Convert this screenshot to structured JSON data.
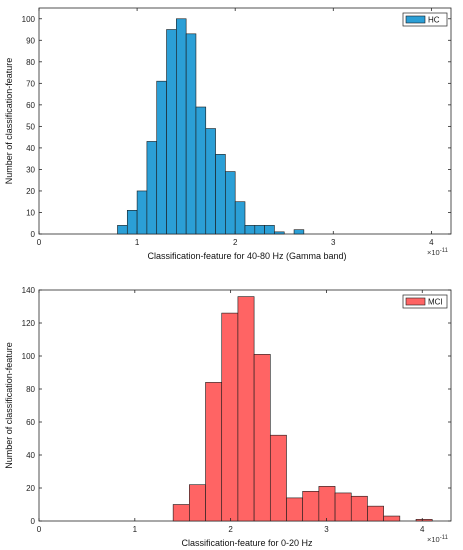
{
  "chart_data": [
    {
      "type": "bar",
      "chart_kind": "histogram",
      "xlabel": "Classification-feature for 40-80 Hz (Gamma band)",
      "ylabel": "Number of classification-feature",
      "x_exponent_label": "×10",
      "x_exponent_power": "-11",
      "xlim": [
        0,
        4.2
      ],
      "ylim": [
        0,
        105
      ],
      "xticks": [
        "0",
        "1",
        "2",
        "3",
        "4"
      ],
      "yticks": [
        "0",
        "10",
        "20",
        "30",
        "40",
        "50",
        "60",
        "70",
        "80",
        "90",
        "100"
      ],
      "legend": "top-right",
      "color": "#2b9fd6",
      "bin_width": 0.1,
      "series": [
        {
          "name": "HC",
          "bin_starts": [
            0.8,
            0.9,
            1.0,
            1.1,
            1.2,
            1.3,
            1.4,
            1.5,
            1.6,
            1.7,
            1.8,
            1.9,
            2.0,
            2.1,
            2.2,
            2.3,
            2.4,
            2.5,
            2.6
          ],
          "values": [
            4,
            11,
            20,
            43,
            71,
            95,
            100,
            93,
            59,
            49,
            37,
            29,
            15,
            4,
            4,
            4,
            1,
            0,
            2
          ]
        }
      ]
    },
    {
      "type": "bar",
      "chart_kind": "histogram",
      "xlabel": "Classification-feature for 0-20 Hz",
      "ylabel": "Number of classification-feature",
      "x_exponent_label": "×10",
      "x_exponent_power": "-11",
      "xlim": [
        0,
        4.3
      ],
      "ylim": [
        0,
        140
      ],
      "xticks": [
        "0",
        "1",
        "2",
        "3",
        "4"
      ],
      "yticks": [
        "0",
        "20",
        "40",
        "60",
        "80",
        "100",
        "120",
        "140"
      ],
      "legend": "top-right",
      "color": "#ff6464",
      "bin_width": 0.169,
      "series": [
        {
          "name": "MCI",
          "bin_starts": [
            1.4,
            1.569,
            1.738,
            1.907,
            2.076,
            2.245,
            2.414,
            2.583,
            2.752,
            2.921,
            3.09,
            3.259,
            3.428,
            3.597,
            3.766,
            3.935
          ],
          "values": [
            10,
            22,
            84,
            126,
            136,
            101,
            52,
            14,
            18,
            21,
            17,
            15,
            9,
            3,
            0,
            1
          ]
        }
      ]
    }
  ]
}
